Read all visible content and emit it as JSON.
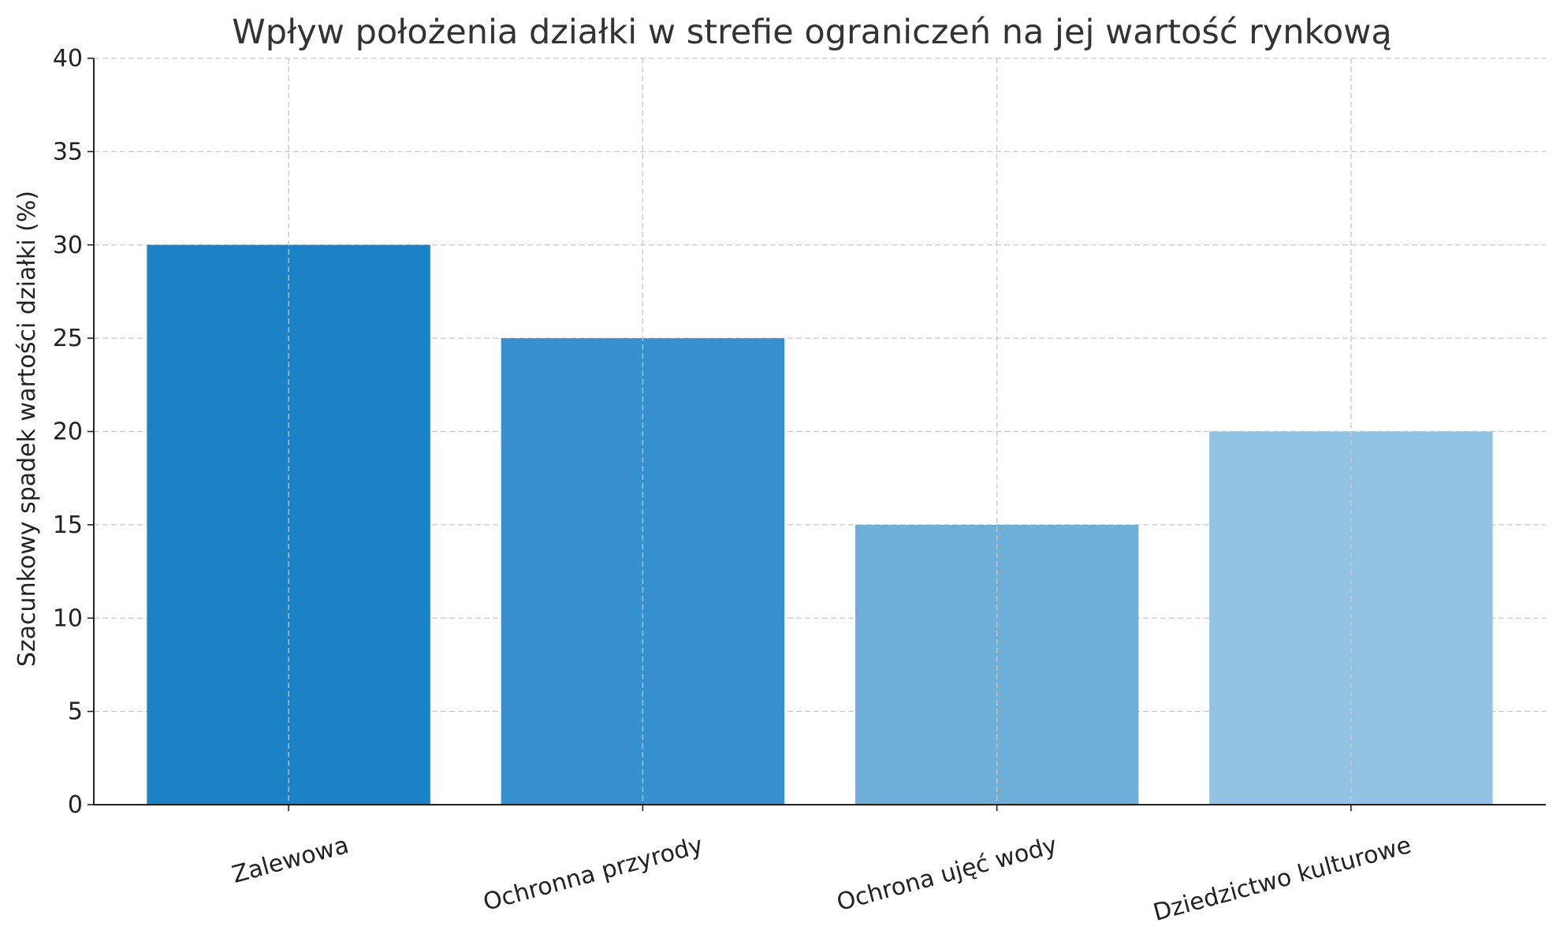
{
  "chart_data": {
    "type": "bar",
    "title": "Wpływ położenia działki w strefie ograniczeń na jej wartość rynkową",
    "xlabel": "",
    "ylabel": "Szacunkowy spadek wartości działki (%)",
    "categories": [
      "Zalewowa",
      "Ochronna przyrody",
      "Ochrona ujęć wody",
      "Dziedzictwo kulturowe"
    ],
    "values": [
      30,
      25,
      15,
      20
    ],
    "bar_colors": [
      "#1c82c6",
      "#368fcf",
      "#6eafda",
      "#93c3e3"
    ],
    "ylim": [
      0,
      40
    ],
    "yticks": [
      0,
      5,
      10,
      15,
      20,
      25,
      30,
      35,
      40
    ],
    "grid": true,
    "legend": "none"
  }
}
